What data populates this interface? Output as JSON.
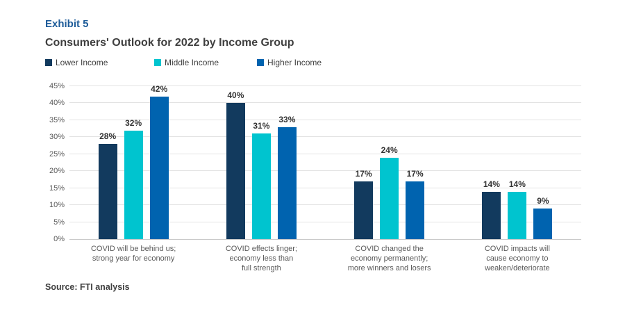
{
  "header": {
    "exhibit": "Exhibit 5",
    "title": "Consumers' Outlook for 2022 by Income Group"
  },
  "chart_data": {
    "type": "bar",
    "title": "Consumers' Outlook for 2022 by Income Group",
    "categories": [
      "COVID will be behind us;\nstrong year for economy",
      "COVID effects linger;\neconomy less than\nfull strength",
      "COVID changed the\neconomy permanently;\nmore winners and losers",
      "COVID impacts will\ncause economy to\nweaken/deteriorate"
    ],
    "series": [
      {
        "name": "Lower Income",
        "color": "#123A5E",
        "values": [
          28,
          40,
          17,
          14
        ]
      },
      {
        "name": "Middle Income",
        "color": "#00C4CF",
        "values": [
          32,
          31,
          24,
          14
        ]
      },
      {
        "name": "Higher Income",
        "color": "#0063AF",
        "values": [
          42,
          33,
          17,
          9
        ]
      }
    ],
    "xlabel": "",
    "ylabel": "",
    "ylim": [
      0,
      45
    ],
    "y_tick_step": 5,
    "unit": "%",
    "grid": true,
    "legend_position": "top",
    "value_labels": true
  },
  "footer": {
    "source": "Source: FTI analysis"
  },
  "colors": {
    "accent": "#1E5C99",
    "title_text": "#3F3F3F",
    "axis_text": "#595959",
    "gridline": "#E3E3E3"
  }
}
